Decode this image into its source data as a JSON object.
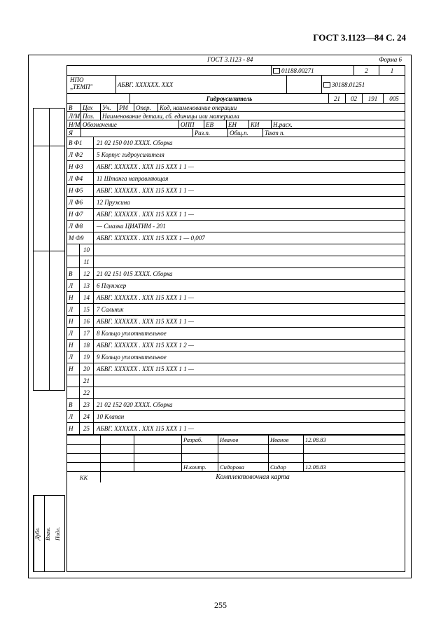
{
  "page_header": "ГОСТ 3.1123—84 С. 24",
  "page_number": "255",
  "top": {
    "gost": "ГОСТ 3.1123 - 84",
    "form": "Форма 6"
  },
  "hdr1": {
    "code1": "01188.00271",
    "c2": "2",
    "c3": "1"
  },
  "hdr2": {
    "org1": "НПО",
    "org2": "„ТЕМП\"",
    "part": "АБВГ. XXXXXX. XXX",
    "code2": "30188.01251"
  },
  "hdr3": {
    "title": "Гидроусилитель",
    "n1": "21",
    "n2": "02",
    "n3": "191",
    "n4": "005"
  },
  "colhdr_b": {
    "a": "В",
    "cells": [
      "Цех",
      "Уч.",
      "РМ",
      "Опер.",
      "Код, наименование операции"
    ]
  },
  "colhdr_lm": {
    "a": "Л/М",
    "cells": [
      "Поз.",
      "Наименование детали, сб. единицы или материала"
    ]
  },
  "colhdr_nm": {
    "a": "Н/М",
    "b": "Обозначение",
    "cells": [
      "ОПП",
      "ЕВ",
      "ЕН",
      "КИ",
      "Н.расх."
    ]
  },
  "colhdr_r": {
    "a": "Я",
    "cells": [
      "Раз.п.",
      "Общ.п.",
      "Такт п."
    ]
  },
  "rows": [
    {
      "code": "В Ф1",
      "text": "21   02   150   010    XXXX.   Сборка"
    },
    {
      "code": "Л Ф2",
      "text": "5     Корпус  гидроусилителя"
    },
    {
      "code": "Н Ф3",
      "text": "АБВГ. XXXXXX . XXX          115    XXX     1          1              —"
    },
    {
      "code": "Л Ф4",
      "text": "11        Штанга   направляющая"
    },
    {
      "code": "Н Ф5",
      "text": "АБВГ.   XXXXXX . XXX        115   XXX     1          1              —"
    },
    {
      "code": "Л Ф6",
      "text": "12        Пружина"
    },
    {
      "code": "Н Ф7",
      "text": "АБВГ.   XXXXXX . XXX        115   XXX    1          1              —"
    },
    {
      "code": "Л Ф8",
      "text": "—         Смазка   ЦИАТИМ - 201"
    },
    {
      "code": "М Ф9",
      "text": "АБВГ.   XXXXXX . XXX        115   XXX    1        —         0,007"
    },
    {
      "code": "",
      "num": "10",
      "text": ""
    },
    {
      "code": "",
      "num": "11",
      "text": ""
    },
    {
      "code": "В",
      "num": "12",
      "text": "21   02    151   015      XXXX.  Сборка"
    },
    {
      "code": "Л",
      "num": "13",
      "text": "6         Плунжер"
    },
    {
      "code": "Н",
      "num": "14",
      "text": "АБВГ.  XXXXXX . XXX        115    XXX    1          1              —"
    },
    {
      "code": "Л",
      "num": "15",
      "text": "7        Сальник"
    },
    {
      "code": "Н",
      "num": "16",
      "text": "АБВГ.  XXXXXX . XXX        115    XXX    1          1              —"
    },
    {
      "code": "Л",
      "num": "17",
      "text": "8        Кольцо  уплотнительное"
    },
    {
      "code": "Н",
      "num": "18",
      "text": "АБВГ.  XXXXXX . XXX        115   XXX    1          2              —"
    },
    {
      "code": "Л",
      "num": "19",
      "text": "9        Кольцо  уплотнительное"
    },
    {
      "code": "Н",
      "num": "20",
      "text": "АБВГ.   XXXXXX . XXX       115    XXX    1          1              —"
    },
    {
      "code": "",
      "num": "21",
      "text": ""
    },
    {
      "code": "",
      "num": "22",
      "text": ""
    },
    {
      "code": "В",
      "num": "23",
      "text": "21   02    152   020      XXXX.  Сборка"
    },
    {
      "code": "Л",
      "num": "24",
      "text": "10       Клапан"
    },
    {
      "code": "Н",
      "num": "25",
      "text": "АБВГ.   XXXXXX . XXX      115    XXX    1          1              —"
    }
  ],
  "footer": {
    "r1": {
      "a": "Разраб.",
      "b": "Иванов",
      "sig": "Иванов",
      "d": "12.08.83"
    },
    "r4": {
      "a": "Н.контр.",
      "b": "Сидорова",
      "sig": "Сидор",
      "d": "12.08.83"
    },
    "kk": "КК",
    "title": "Комплектовочная  карта"
  },
  "side": {
    "a": "Дубл.",
    "b": "Взам.",
    "c": "Подл."
  }
}
